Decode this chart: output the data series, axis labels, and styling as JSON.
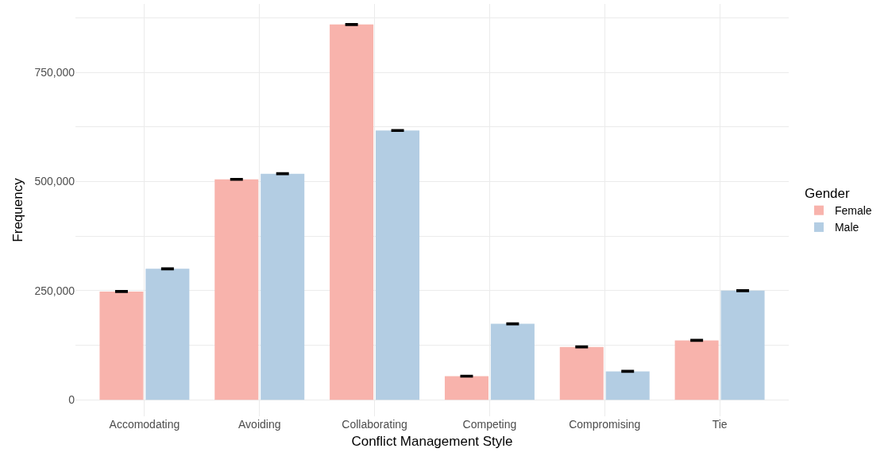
{
  "chart_data": {
    "type": "bar",
    "xlabel": "Conflict Management Style",
    "ylabel": "Frequency",
    "legend_title": "Gender",
    "categories": [
      "Accomodating",
      "Avoiding",
      "Collaborating",
      "Competing",
      "Compromising",
      "Tie"
    ],
    "series": [
      {
        "name": "Female",
        "color": "#f8b3ac",
        "values": [
          248000,
          505000,
          860000,
          54000,
          121000,
          136000
        ],
        "errors": [
          1500,
          1500,
          1500,
          1500,
          1500,
          1500
        ]
      },
      {
        "name": "Male",
        "color": "#b3cde3",
        "values": [
          300000,
          518000,
          617000,
          174000,
          65000,
          250000
        ],
        "errors": [
          1500,
          1500,
          1500,
          1500,
          1500,
          1500
        ]
      }
    ],
    "ylim": [
      -38000,
      907000
    ],
    "yticks": [
      0,
      {
        "value": 125000,
        "label": null
      },
      {
        "value": 250000,
        "label": "250,000"
      },
      {
        "value": 375000,
        "label": null
      },
      {
        "value": 500000,
        "label": "500,000"
      },
      {
        "value": 625000,
        "label": null
      },
      {
        "value": 750000,
        "label": "750,000"
      },
      {
        "value": 875000,
        "label": null
      }
    ],
    "grid": true,
    "legend": "right"
  }
}
